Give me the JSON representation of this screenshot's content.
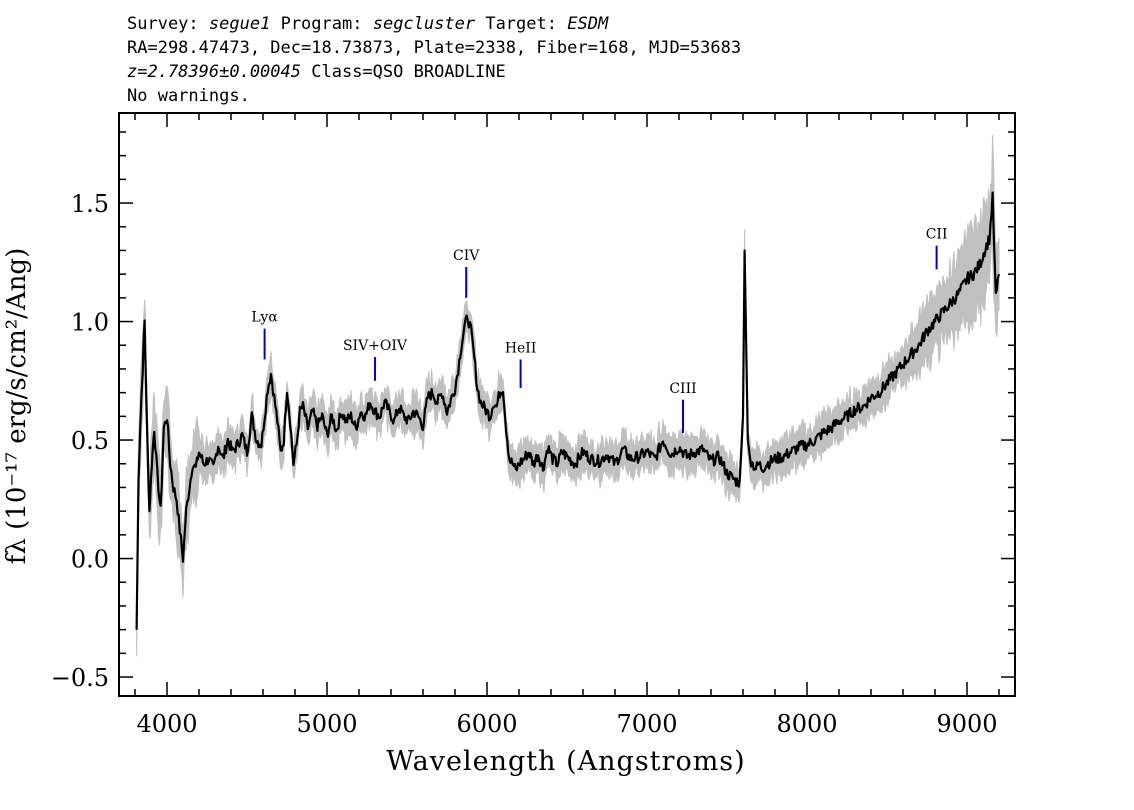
{
  "header": {
    "survey_label": "Survey:",
    "survey_value": "segue1",
    "program_label": "Program:",
    "program_value": "segcluster",
    "target_label": "Target:",
    "target_value": "ESDM",
    "coords_line": "RA=298.47473, Dec=18.73873, Plate=2338, Fiber=168, MJD=53683",
    "redshift_value": "z=2.78396±0.00045",
    "class_text": "Class=QSO BROADLINE",
    "warnings_text": "No warnings."
  },
  "chart_data": {
    "type": "line",
    "xlabel": "Wavelength (Angstroms)",
    "ylabel": "fλ (10⁻¹⁷ erg/s/cm²/Ang)",
    "xlim": [
      3700,
      9300
    ],
    "ylim": [
      -0.58,
      1.88
    ],
    "xticks": [
      4000,
      5000,
      6000,
      7000,
      8000,
      9000
    ],
    "yticks": [
      -0.5,
      0.0,
      0.5,
      1.0,
      1.5
    ],
    "ytick_labels": [
      "−0.5",
      "0.0",
      "0.5",
      "1.0",
      "1.5"
    ],
    "grid": false,
    "colors": {
      "flux": "#000000",
      "error_band": "#c0c0c0",
      "line_markers": "#0000cc"
    },
    "series": [
      {
        "x": [
          3810,
          3822,
          3835,
          3848,
          3860,
          3875,
          3890,
          3905,
          3920,
          3940,
          3960,
          3980,
          4000,
          4020,
          4040,
          4060,
          4080,
          4100,
          4120,
          4140,
          4160,
          4180,
          4200,
          4230,
          4260,
          4290,
          4320,
          4350,
          4380,
          4410,
          4440,
          4470,
          4500,
          4530,
          4560,
          4590,
          4610,
          4630,
          4650,
          4670,
          4690,
          4710,
          4730,
          4750,
          4770,
          4790,
          4810,
          4830,
          4850,
          4880,
          4910,
          4940,
          4970,
          5000,
          5030,
          5060,
          5090,
          5120,
          5150,
          5180,
          5210,
          5240,
          5270,
          5300,
          5330,
          5360,
          5390,
          5420,
          5450,
          5480,
          5510,
          5540,
          5570,
          5600,
          5630,
          5660,
          5690,
          5720,
          5750,
          5780,
          5800,
          5820,
          5840,
          5860,
          5880,
          5900,
          5920,
          5940,
          5960,
          5980,
          6000,
          6020,
          6040,
          6060,
          6080,
          6100,
          6120,
          6140,
          6160,
          6180,
          6200,
          6230,
          6260,
          6290,
          6320,
          6350,
          6380,
          6410,
          6440,
          6470,
          6500,
          6550,
          6600,
          6650,
          6700,
          6750,
          6800,
          6850,
          6900,
          6950,
          7000,
          7050,
          7100,
          7150,
          7200,
          7250,
          7300,
          7350,
          7400,
          7450,
          7500,
          7550,
          7580,
          7600,
          7610,
          7620,
          7630,
          7645,
          7660,
          7680,
          7700,
          7720,
          7750,
          7800,
          7850,
          7900,
          7950,
          8000,
          8050,
          8100,
          8150,
          8200,
          8250,
          8300,
          8350,
          8400,
          8450,
          8500,
          8550,
          8600,
          8650,
          8700,
          8750,
          8800,
          8850,
          8900,
          8950,
          9000,
          9040,
          9080,
          9110,
          9140,
          9160,
          9180,
          9200
        ],
        "y": [
          -0.3,
          0.35,
          0.6,
          0.8,
          1.0,
          0.55,
          0.2,
          0.4,
          0.55,
          0.35,
          0.2,
          0.55,
          0.6,
          0.4,
          0.3,
          0.25,
          0.12,
          0.0,
          0.2,
          0.3,
          0.4,
          0.38,
          0.45,
          0.4,
          0.42,
          0.38,
          0.48,
          0.42,
          0.5,
          0.45,
          0.48,
          0.52,
          0.45,
          0.6,
          0.5,
          0.48,
          0.6,
          0.72,
          0.78,
          0.68,
          0.58,
          0.45,
          0.5,
          0.72,
          0.58,
          0.4,
          0.48,
          0.62,
          0.64,
          0.55,
          0.62,
          0.56,
          0.6,
          0.52,
          0.6,
          0.54,
          0.62,
          0.58,
          0.6,
          0.55,
          0.62,
          0.6,
          0.66,
          0.62,
          0.6,
          0.66,
          0.62,
          0.58,
          0.64,
          0.6,
          0.58,
          0.62,
          0.6,
          0.56,
          0.68,
          0.7,
          0.66,
          0.7,
          0.62,
          0.68,
          0.72,
          0.8,
          0.9,
          0.98,
          1.02,
          0.96,
          0.85,
          0.72,
          0.66,
          0.64,
          0.62,
          0.6,
          0.66,
          0.64,
          0.7,
          0.72,
          0.55,
          0.42,
          0.4,
          0.37,
          0.4,
          0.42,
          0.45,
          0.4,
          0.44,
          0.38,
          0.47,
          0.42,
          0.4,
          0.45,
          0.43,
          0.4,
          0.45,
          0.42,
          0.41,
          0.44,
          0.4,
          0.46,
          0.42,
          0.43,
          0.45,
          0.42,
          0.5,
          0.44,
          0.47,
          0.43,
          0.45,
          0.46,
          0.41,
          0.43,
          0.36,
          0.33,
          0.32,
          0.6,
          1.3,
          0.9,
          0.5,
          0.42,
          0.4,
          0.38,
          0.4,
          0.38,
          0.4,
          0.42,
          0.43,
          0.45,
          0.47,
          0.48,
          0.5,
          0.53,
          0.55,
          0.58,
          0.6,
          0.63,
          0.64,
          0.68,
          0.7,
          0.74,
          0.78,
          0.82,
          0.86,
          0.9,
          0.96,
          1.0,
          1.04,
          1.08,
          1.12,
          1.18,
          1.2,
          1.24,
          1.3,
          1.35,
          1.52,
          1.1,
          1.2
        ]
      }
    ],
    "annotations": [
      {
        "label": "Lyα",
        "x": 4610,
        "y_low": 0.84,
        "y_high": 0.97
      },
      {
        "label": "SIV+OIV",
        "x": 5300,
        "y_low": 0.75,
        "y_high": 0.85
      },
      {
        "label": "CIV",
        "x": 5870,
        "y_low": 1.1,
        "y_high": 1.23
      },
      {
        "label": "HeII",
        "x": 6210,
        "y_low": 0.72,
        "y_high": 0.84
      },
      {
        "label": "CIII",
        "x": 7225,
        "y_low": 0.53,
        "y_high": 0.67
      },
      {
        "label": "CII",
        "x": 8810,
        "y_low": 1.22,
        "y_high": 1.32
      }
    ]
  }
}
